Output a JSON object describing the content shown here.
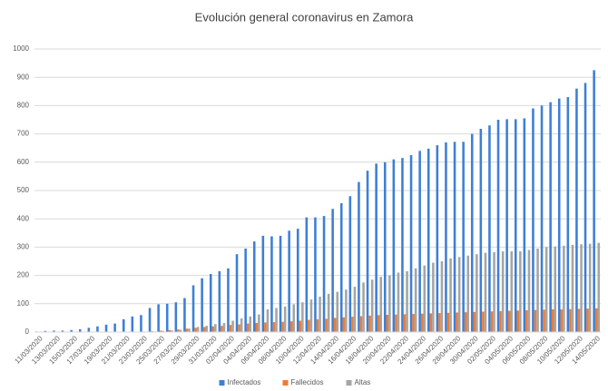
{
  "chart_data": {
    "type": "bar",
    "title": "Evolución general coronavirus en Zamora",
    "categories": [
      "11/03/2020",
      null,
      "13/03/2020",
      null,
      "15/03/2020",
      null,
      "17/03/2020",
      null,
      "19/03/2020",
      null,
      "21/03/2020",
      null,
      "23/03/2020",
      null,
      "25/03/2020",
      null,
      "27/03/2020",
      null,
      "29/03/2020",
      null,
      "31/03/2020",
      null,
      "02/04/2020",
      null,
      "04/04/2020",
      null,
      "06/04/2020",
      null,
      "08/04/2020",
      null,
      "10/04/2020",
      null,
      "12/04/2020",
      null,
      "14/04/2020",
      null,
      "16/04/2020",
      null,
      "18/04/2020",
      null,
      "20/04/2020",
      null,
      "22/04/2020",
      null,
      "24/04/2020",
      null,
      "26/04/2020",
      null,
      "28/04/2020",
      null,
      "30/04/2020",
      null,
      "02/05/2020",
      null,
      "04/05/2020",
      null,
      "06/05/2020",
      null,
      "08/05/2020",
      null,
      "10/05/2020",
      null,
      "12/05/2020",
      null,
      "14/05/2020"
    ],
    "series": [
      {
        "name": "Infectados",
        "color": "#3d7fd6",
        "values": [
          2,
          4,
          5,
          5,
          7,
          10,
          15,
          20,
          26,
          30,
          45,
          55,
          60,
          85,
          98,
          100,
          105,
          120,
          165,
          190,
          205,
          215,
          225,
          275,
          295,
          320,
          340,
          338,
          340,
          358,
          365,
          405,
          405,
          410,
          435,
          455,
          480,
          530,
          570,
          595,
          600,
          610,
          615,
          625,
          640,
          648,
          660,
          670,
          672,
          672,
          700,
          718,
          730,
          750,
          752,
          752,
          755,
          790,
          800,
          812,
          825,
          830,
          860,
          880,
          925
        ]
      },
      {
        "name": "Fallecidos",
        "color": "#ed7d31",
        "values": [
          0,
          0,
          0,
          0,
          0,
          0,
          0,
          0,
          0,
          0,
          0,
          1,
          2,
          3,
          5,
          7,
          9,
          12,
          15,
          18,
          20,
          22,
          25,
          27,
          30,
          32,
          34,
          35,
          36,
          38,
          40,
          43,
          45,
          47,
          50,
          52,
          54,
          56,
          58,
          60,
          61,
          62,
          63,
          64,
          65,
          66,
          67,
          68,
          69,
          70,
          71,
          72,
          73,
          74,
          75,
          76,
          77,
          78,
          79,
          80,
          80,
          81,
          82,
          83,
          84
        ]
      },
      {
        "name": "Altas",
        "color": "#a5a5a5",
        "values": [
          0,
          0,
          0,
          0,
          0,
          0,
          0,
          0,
          0,
          0,
          0,
          0,
          0,
          2,
          4,
          6,
          8,
          12,
          18,
          22,
          28,
          32,
          40,
          48,
          55,
          62,
          80,
          85,
          90,
          98,
          105,
          115,
          125,
          135,
          142,
          150,
          160,
          175,
          185,
          195,
          200,
          210,
          215,
          225,
          235,
          245,
          250,
          260,
          265,
          270,
          275,
          280,
          282,
          285,
          285,
          285,
          290,
          295,
          300,
          302,
          305,
          308,
          310,
          312,
          315
        ]
      }
    ],
    "ylim": [
      0,
      1000
    ],
    "yticks": [
      0,
      100,
      200,
      300,
      400,
      500,
      600,
      700,
      800,
      900,
      1000
    ],
    "grid": true,
    "legend": "bottom"
  }
}
